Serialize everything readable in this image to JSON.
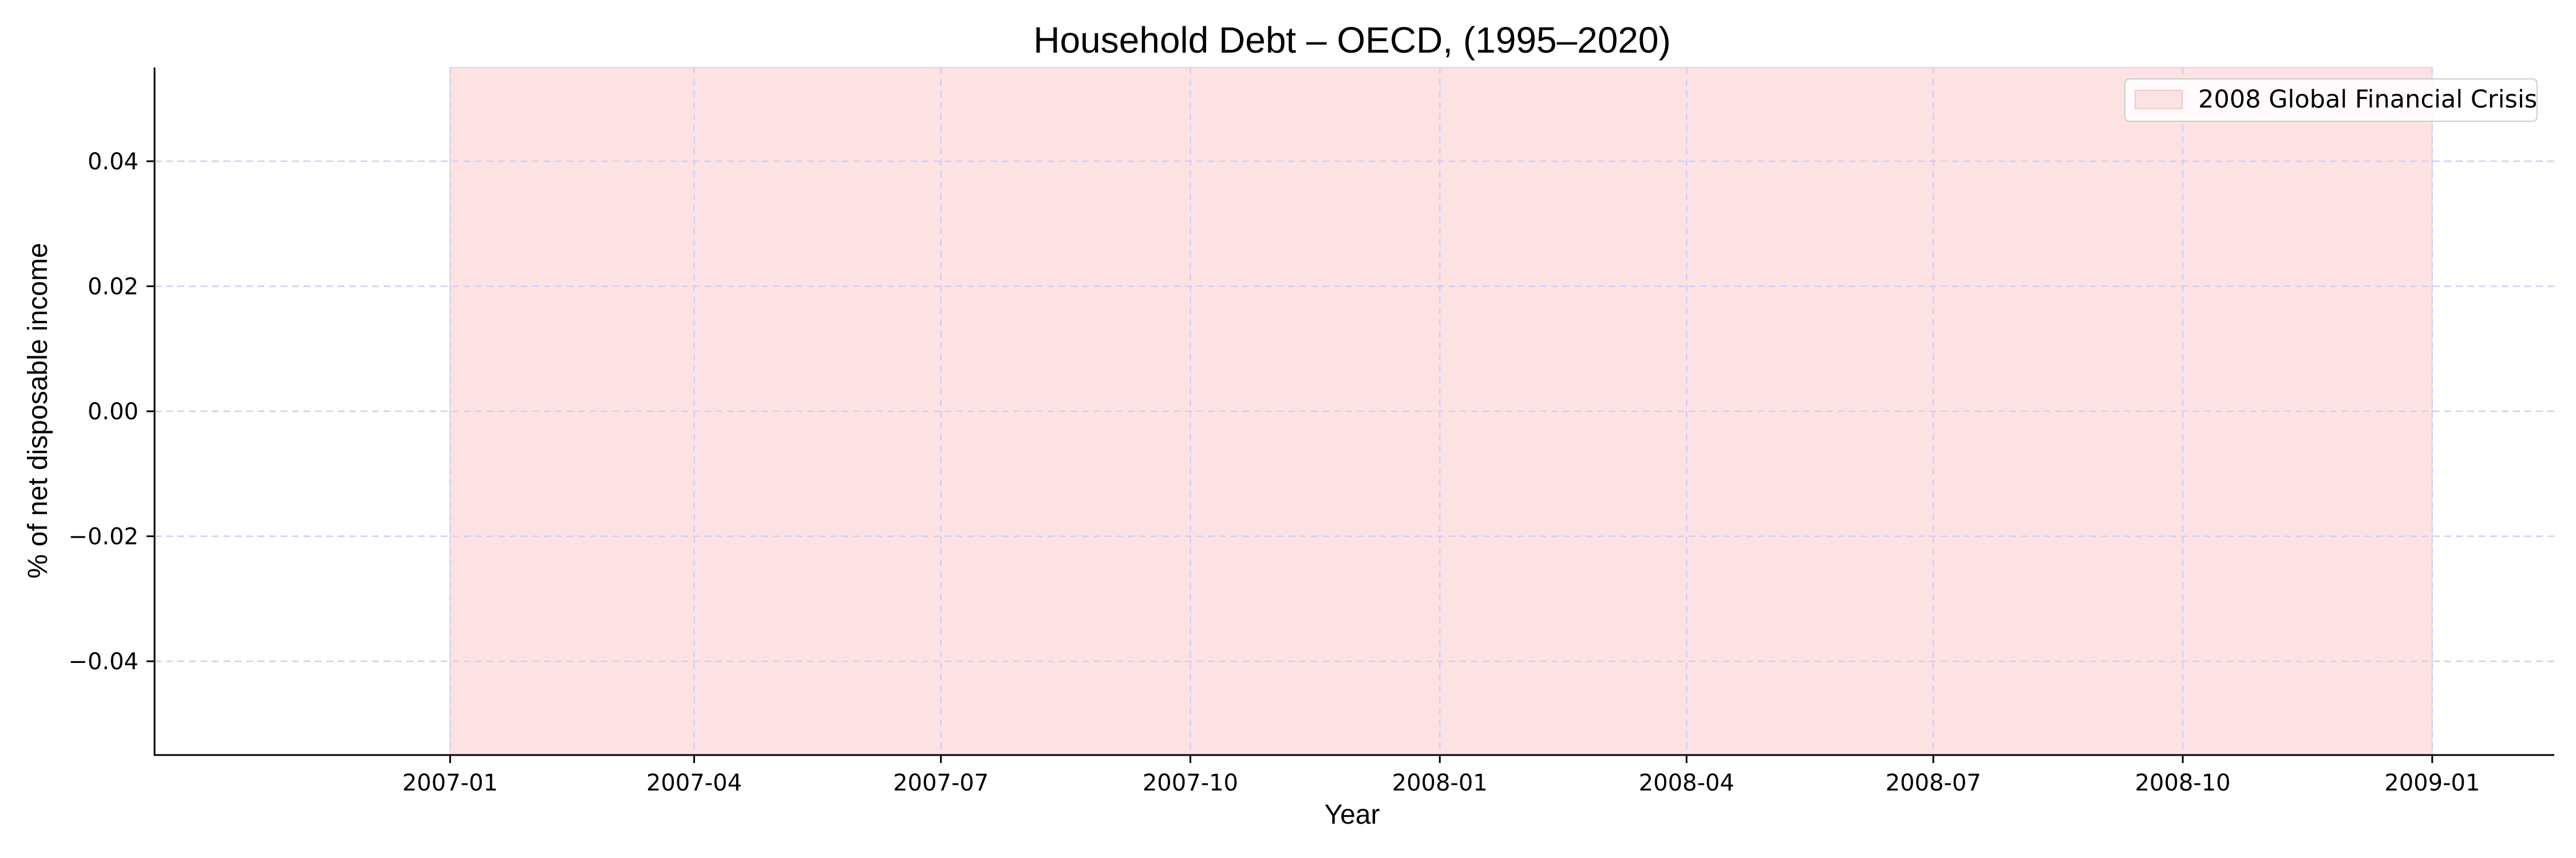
{
  "chart_data": {
    "type": "area",
    "title": "Household Debt – OECD, (1995–2020)",
    "xlabel": "Year",
    "ylabel": "% of net disposable income",
    "xlim": [
      "2006-09-14",
      "2009-02-15"
    ],
    "ylim": [
      -0.055,
      0.055
    ],
    "x_ticks": [
      "2007-01-01",
      "2007-04-01",
      "2007-07-01",
      "2007-10-01",
      "2008-01-01",
      "2008-04-01",
      "2008-07-01",
      "2008-10-01",
      "2009-01-01"
    ],
    "x_tick_labels": [
      "2007-01",
      "2007-04",
      "2007-07",
      "2007-10",
      "2008-01",
      "2008-04",
      "2008-07",
      "2008-10",
      "2009-01"
    ],
    "y_ticks": [
      -0.04,
      -0.02,
      0.0,
      0.02,
      0.04
    ],
    "y_tick_labels": [
      "−0.04",
      "−0.02",
      "0.00",
      "0.02",
      "0.04"
    ],
    "grid": true,
    "legend_position": "top-right",
    "series": [],
    "shaded_regions": [
      {
        "name": "2008 Global Financial Crisis",
        "start": "2007-01-01",
        "end": "2009-01-01",
        "color": "#fde2e4"
      }
    ],
    "colors": {
      "grid": "#cfcff5",
      "axis": "#000000",
      "legend_border": "#cccccc"
    }
  }
}
